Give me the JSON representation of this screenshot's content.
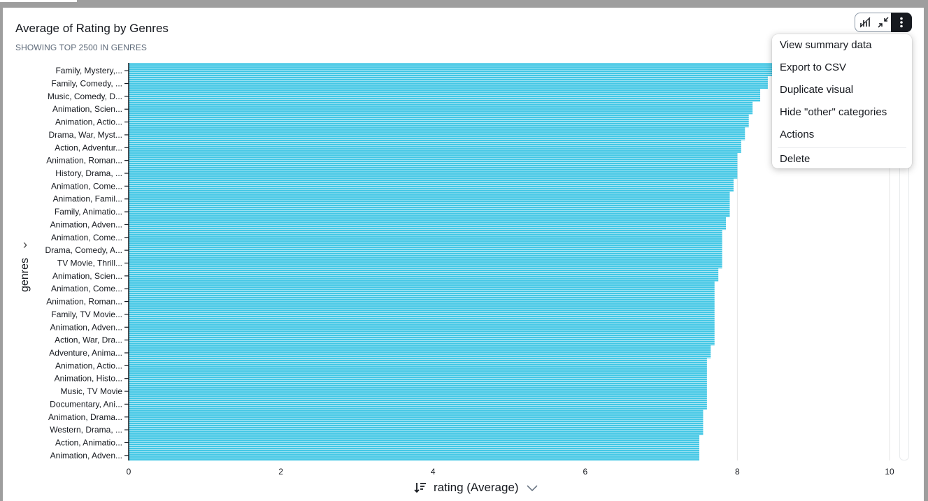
{
  "visual": {
    "title": "Average of Rating by Genres",
    "subtitle": "SHOWING TOP 2500 IN GENRES",
    "y_field": "genres",
    "x_field": "rating (Average)"
  },
  "toolbar": {
    "icons": [
      "bar-chart-icon",
      "collapse-icon",
      "more-icon"
    ]
  },
  "menu": {
    "items": [
      "View summary data",
      "Export to CSV",
      "Duplicate visual",
      "Hide \"other\" categories",
      "Actions"
    ],
    "delete": "Delete"
  },
  "colors": {
    "bar": "#43c7e5",
    "bar_separator": "#ffffff",
    "grid": "#e6e6e6",
    "axis": "#16191f"
  },
  "chart_data": {
    "type": "bar",
    "orientation": "horizontal",
    "title": "Average of Rating by Genres",
    "subtitle": "SHOWING TOP 2500 IN GENRES",
    "xlabel": "rating (Average)",
    "ylabel": "genres",
    "xlim": [
      0,
      10
    ],
    "xticks": [
      0,
      2,
      4,
      6,
      8,
      10
    ],
    "grid": true,
    "legend": "none",
    "categories": [
      "Family, Mystery,...",
      "Family, Comedy, ...",
      "Music, Comedy, D...",
      "Animation, Scien...",
      "Animation, Actio...",
      "Drama, War, Myst...",
      "Action, Adventur...",
      "Animation, Roman...",
      "History, Drama, ...",
      "Animation, Come...",
      "Animation, Famil...",
      "Family, Animatio...",
      "Animation, Adven...",
      "Animation, Come...",
      "Drama, Comedy, A...",
      "TV Movie, Thrill...",
      "Animation, Scien...",
      "Animation, Come...",
      "Animation, Roman...",
      "Family, TV Movie...",
      "Animation, Adven...",
      "Action, War, Dra...",
      "Adventure, Anima...",
      "Animation, Actio...",
      "Animation, Histo...",
      "Music, TV Movie",
      "Documentary, Ani...",
      "Animation, Drama...",
      "Western, Drama, ...",
      "Action, Animatio...",
      "Animation, Adven..."
    ],
    "values": [
      8.6,
      8.4,
      8.3,
      8.2,
      8.15,
      8.1,
      8.05,
      8.0,
      8.0,
      7.95,
      7.9,
      7.9,
      7.85,
      7.8,
      7.8,
      7.8,
      7.75,
      7.7,
      7.7,
      7.7,
      7.7,
      7.7,
      7.65,
      7.6,
      7.6,
      7.6,
      7.6,
      7.55,
      7.55,
      7.5,
      7.5
    ]
  }
}
